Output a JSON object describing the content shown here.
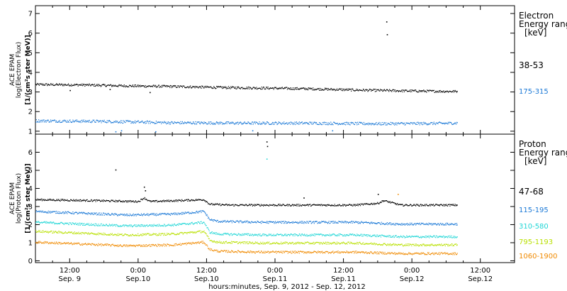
{
  "chart_data": [
    {
      "type": "scatter",
      "panel": "electron",
      "ylabel_lines": [
        "ACE EPAM",
        "log(Electron Flux)",
        "[1/(cm²s ster MeV)]"
      ],
      "ylim": [
        0.85,
        7.4
      ],
      "yticks": [
        1,
        2,
        3,
        4,
        5,
        6,
        7
      ],
      "xlim_hours": [
        0,
        84
      ],
      "legend_title_lines": [
        "Electron",
        "Energy range",
        "[keV]"
      ],
      "series": [
        {
          "name": "38-53",
          "color": "#000000",
          "x_hours": [
            0,
            8,
            16,
            24,
            32,
            40,
            48,
            56,
            64,
            72,
            74
          ],
          "values": [
            3.4,
            3.38,
            3.33,
            3.3,
            3.25,
            3.22,
            3.18,
            3.12,
            3.08,
            3.05,
            3.05
          ],
          "spread": 0.06,
          "outliers": [
            [
              61.5,
              6.6
            ],
            [
              61.6,
              5.95
            ],
            [
              6,
              3.1
            ],
            [
              13,
              3.15
            ],
            [
              20,
              3.0
            ]
          ]
        },
        {
          "name": "175-315",
          "color": "#1a78d6",
          "x_hours": [
            0,
            12,
            24,
            36,
            48,
            60,
            72,
            74
          ],
          "values": [
            1.55,
            1.52,
            1.45,
            1.43,
            1.43,
            1.4,
            1.42,
            1.44
          ],
          "spread": 0.07,
          "outliers": [
            [
              14,
              1.0
            ],
            [
              15,
              1.05
            ],
            [
              21,
              1.0
            ],
            [
              38,
              1.05
            ],
            [
              52,
              1.05
            ]
          ]
        }
      ]
    },
    {
      "type": "scatter",
      "panel": "proton",
      "ylabel_lines": [
        "ACE EPAM",
        "log(Proton Flux)",
        "[1/(cm²s ster MeV)]"
      ],
      "ylim": [
        -0.1,
        7.0
      ],
      "yticks": [
        0,
        1,
        2,
        3,
        4,
        5,
        6
      ],
      "xlim_hours": [
        0,
        84
      ],
      "xticks": [
        {
          "h": 6,
          "label1": "12:00",
          "label2": "Sep. 9"
        },
        {
          "h": 18,
          "label1": "0:00",
          "label2": "Sep.10"
        },
        {
          "h": 30,
          "label1": "12:00",
          "label2": "Sep.10"
        },
        {
          "h": 42,
          "label1": "0:00",
          "label2": "Sep.11"
        },
        {
          "h": 54,
          "label1": "12:00",
          "label2": "Sep.11"
        },
        {
          "h": 66,
          "label1": "0:00",
          "label2": "Sep.12"
        },
        {
          "h": 78,
          "label1": "12:00",
          "label2": "Sep.12"
        }
      ],
      "xlabel": "hours:minutes, Sep.  9, 2012 - Sep. 12, 2012",
      "legend_title_lines": [
        "Proton",
        "Energy range",
        "[keV]"
      ],
      "series": [
        {
          "name": "47-68",
          "color": "#000000",
          "x_hours": [
            0,
            10,
            18,
            19,
            20,
            25,
            29.5,
            30.5,
            34,
            42,
            48,
            56,
            60,
            61,
            64,
            74
          ],
          "values": [
            3.4,
            3.35,
            3.3,
            3.5,
            3.3,
            3.35,
            3.4,
            3.15,
            3.1,
            3.1,
            3.1,
            3.1,
            3.2,
            3.35,
            3.1,
            3.1
          ],
          "spread": 0.05,
          "outliers": [
            [
              14,
              5.05
            ],
            [
              40.5,
              6.6
            ],
            [
              40.6,
              6.35
            ],
            [
              47,
              3.5
            ],
            [
              60,
              3.7
            ],
            [
              19,
              4.1
            ],
            [
              19.2,
              3.9
            ]
          ]
        },
        {
          "name": "115-195",
          "color": "#1a78d6",
          "x_hours": [
            0,
            8,
            16,
            24,
            29.5,
            30.5,
            32,
            40,
            48,
            56,
            64,
            74
          ],
          "values": [
            2.75,
            2.65,
            2.55,
            2.6,
            2.75,
            2.3,
            2.2,
            2.15,
            2.15,
            2.15,
            2.05,
            2.05
          ],
          "spread": 0.06,
          "outliers": []
        },
        {
          "name": "310-580",
          "color": "#20d6d6",
          "x_hours": [
            0,
            8,
            16,
            24,
            29.5,
            30.5,
            32,
            40,
            48,
            56,
            64,
            74
          ],
          "values": [
            2.15,
            2.05,
            1.95,
            2.0,
            2.15,
            1.6,
            1.5,
            1.45,
            1.45,
            1.45,
            1.35,
            1.35
          ],
          "spread": 0.06,
          "outliers": [
            [
              40.5,
              5.65
            ]
          ]
        },
        {
          "name": "795-1193",
          "color": "#b8e000",
          "x_hours": [
            0,
            8,
            16,
            24,
            29.5,
            30.5,
            32,
            40,
            48,
            56,
            64,
            74
          ],
          "values": [
            1.65,
            1.55,
            1.45,
            1.5,
            1.65,
            1.15,
            1.05,
            1.0,
            1.0,
            1.0,
            0.9,
            0.9
          ],
          "spread": 0.06,
          "outliers": []
        },
        {
          "name": "1060-1900",
          "color": "#f08a00",
          "x_hours": [
            0,
            8,
            16,
            24,
            29.5,
            30.5,
            32,
            40,
            48,
            56,
            64,
            74
          ],
          "values": [
            1.05,
            0.95,
            0.85,
            0.9,
            1.05,
            0.65,
            0.55,
            0.5,
            0.5,
            0.5,
            0.42,
            0.42
          ],
          "spread": 0.06,
          "outliers": [
            [
              63.5,
              3.7
            ]
          ]
        }
      ]
    }
  ]
}
